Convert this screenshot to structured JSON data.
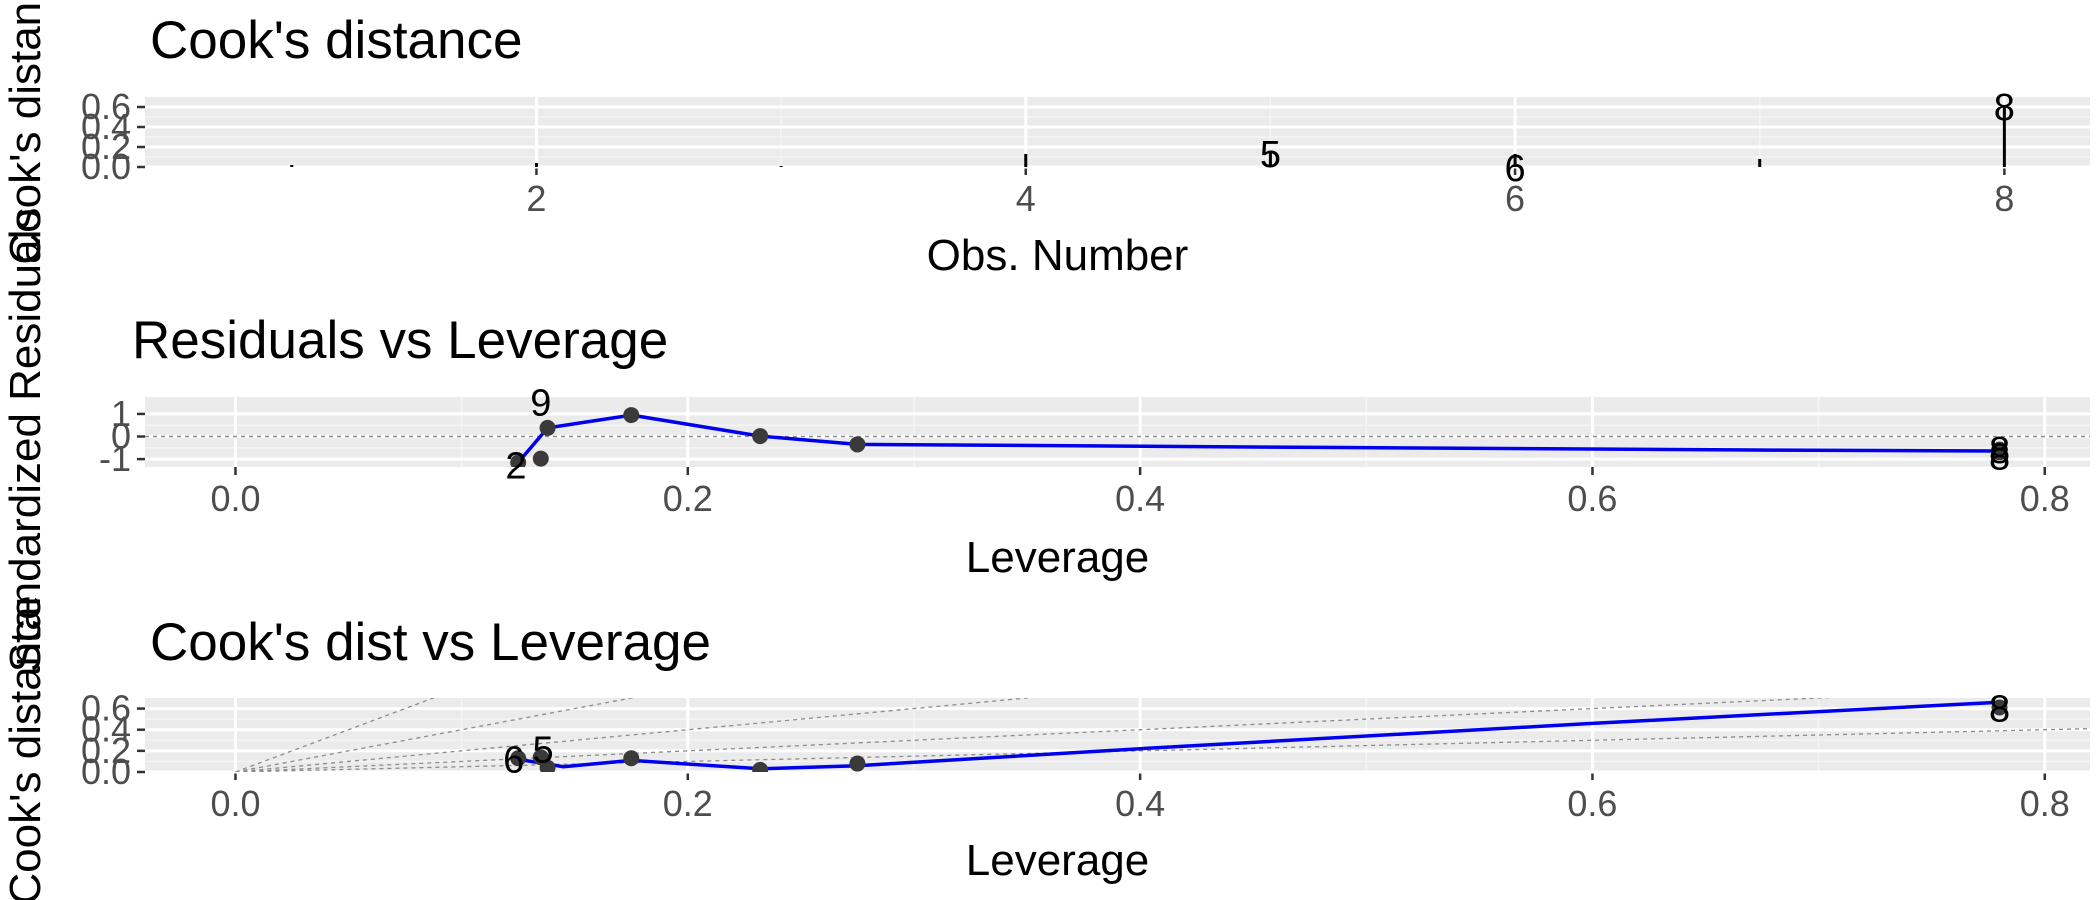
{
  "colors": {
    "panel_background": "#ebebeb",
    "grid_major": "#ffffff",
    "grid_minor": "#f5f5f5",
    "points": "#3a3a3a",
    "smoother": "#0000ee",
    "reference": "#8c8c8c",
    "text": "#000000",
    "tick_text": "#4d4d4d"
  },
  "chart_data": [
    {
      "type": "bar",
      "title": "Cook's distance",
      "xlabel": "Obs. Number",
      "ylabel": "Cook's distance",
      "xlim": [
        0.4,
        8.35
      ],
      "ylim": [
        0.0,
        0.7
      ],
      "x_ticks": [
        2,
        4,
        6,
        8
      ],
      "x_tick_labels": [
        "2",
        "4",
        "6",
        "8"
      ],
      "y_ticks": [
        0.0,
        0.2,
        0.4,
        0.6
      ],
      "y_tick_labels": [
        "0.0",
        "0.2",
        "0.4",
        "0.6"
      ],
      "x": [
        1,
        2,
        3,
        4,
        5,
        6,
        7,
        8
      ],
      "values": [
        0.02,
        0.04,
        0.01,
        0.13,
        0.14,
        0.13,
        0.08,
        0.61
      ],
      "labels": [
        {
          "x": 5,
          "y": 0.14,
          "text": "5"
        },
        {
          "x": 6,
          "y": 0.0,
          "text": "6"
        },
        {
          "x": 8,
          "y": 0.61,
          "text": "8"
        }
      ],
      "grid": true
    },
    {
      "type": "scatter",
      "title": "Residuals vs Leverage",
      "xlabel": "Leverage",
      "ylabel": "Standardized Residuals",
      "xlim": [
        -0.04,
        0.82
      ],
      "ylim": [
        -1.35,
        1.75
      ],
      "x_ticks": [
        0.0,
        0.2,
        0.4,
        0.6,
        0.8
      ],
      "x_tick_labels": [
        "0.0",
        "0.2",
        "0.4",
        "0.6",
        "0.8"
      ],
      "y_ticks": [
        -1,
        0,
        1
      ],
      "y_tick_labels": [
        "-1",
        "0",
        "1"
      ],
      "points": [
        {
          "x": 0.125,
          "y": -1.15
        },
        {
          "x": 0.135,
          "y": -0.98
        },
        {
          "x": 0.138,
          "y": 0.38
        },
        {
          "x": 0.175,
          "y": 0.95
        },
        {
          "x": 0.232,
          "y": 0.02
        },
        {
          "x": 0.275,
          "y": -0.35
        },
        {
          "x": 0.78,
          "y": -0.58
        },
        {
          "x": 0.78,
          "y": -0.7
        }
      ],
      "smoother": [
        {
          "x": 0.125,
          "y": -1.15
        },
        {
          "x": 0.138,
          "y": 0.38
        },
        {
          "x": 0.175,
          "y": 0.95
        },
        {
          "x": 0.232,
          "y": 0.02
        },
        {
          "x": 0.275,
          "y": -0.35
        },
        {
          "x": 0.48,
          "y": -0.48
        },
        {
          "x": 0.68,
          "y": -0.6
        },
        {
          "x": 0.78,
          "y": -0.64
        }
      ],
      "labels": [
        {
          "x": 0.135,
          "y": 1.55,
          "text": "9"
        },
        {
          "x": 0.124,
          "y": -1.25,
          "text": "2"
        },
        {
          "x": 0.78,
          "y": -0.55,
          "text": "8"
        },
        {
          "x": 0.78,
          "y": -0.85,
          "text": "8"
        }
      ],
      "grid": true
    },
    {
      "type": "scatter",
      "title": "Cook's dist vs Leverage",
      "xlabel": "Leverage",
      "ylabel": "Cook's distance",
      "xlim": [
        -0.04,
        0.82
      ],
      "ylim": [
        0.0,
        0.7
      ],
      "x_ticks": [
        0.0,
        0.2,
        0.4,
        0.6,
        0.8
      ],
      "x_tick_labels": [
        "0.0",
        "0.2",
        "0.4",
        "0.6",
        "0.8"
      ],
      "y_ticks": [
        0.0,
        0.2,
        0.4,
        0.6
      ],
      "y_tick_labels": [
        "0.0",
        "0.2",
        "0.4",
        "0.6"
      ],
      "points": [
        {
          "x": 0.125,
          "y": 0.13
        },
        {
          "x": 0.135,
          "y": 0.14
        },
        {
          "x": 0.138,
          "y": 0.04
        },
        {
          "x": 0.175,
          "y": 0.13
        },
        {
          "x": 0.232,
          "y": 0.02
        },
        {
          "x": 0.275,
          "y": 0.08
        },
        {
          "x": 0.78,
          "y": 0.61
        }
      ],
      "smoother": [
        {
          "x": 0.125,
          "y": 0.12
        },
        {
          "x": 0.145,
          "y": 0.05
        },
        {
          "x": 0.175,
          "y": 0.11
        },
        {
          "x": 0.232,
          "y": 0.03
        },
        {
          "x": 0.275,
          "y": 0.06
        },
        {
          "x": 0.4,
          "y": 0.22
        },
        {
          "x": 0.6,
          "y": 0.46
        },
        {
          "x": 0.78,
          "y": 0.66
        }
      ],
      "contour_slopes": [
        0.5,
        1.0,
        2.0,
        4.0,
        8.0
      ],
      "labels": [
        {
          "x": 0.123,
          "y": 0.13,
          "text": "6"
        },
        {
          "x": 0.136,
          "y": 0.22,
          "text": "5"
        },
        {
          "x": 0.78,
          "y": 0.61,
          "text": "8"
        }
      ],
      "grid": true
    }
  ]
}
